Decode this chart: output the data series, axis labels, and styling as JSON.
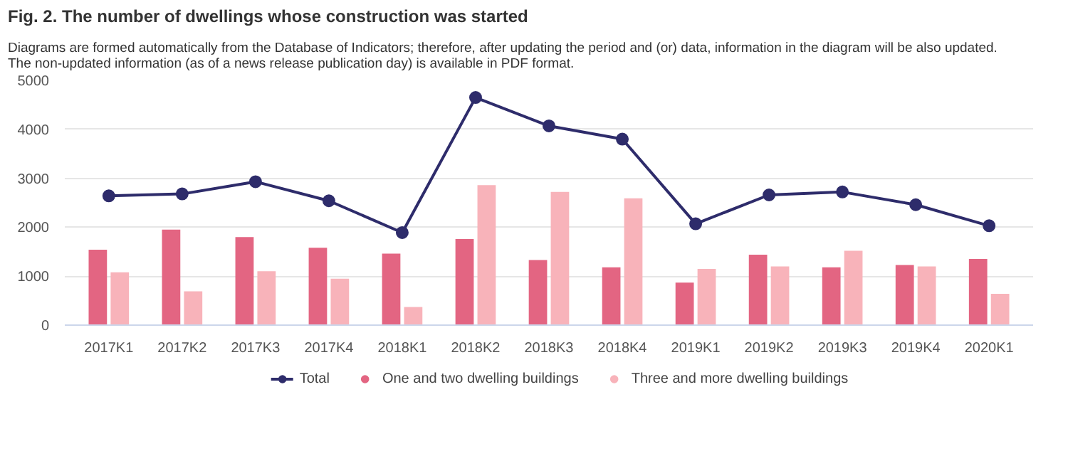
{
  "chart_data": {
    "type": "bar",
    "title": "Fig. 2. The number of dwellings whose construction was started",
    "subtitle": "Diagrams are formed automatically from the Database of Indicators; therefore, after updating the period and (or) data, information in the diagram will be also updated.\nThe non-updated information (as of a news release publication day) is available in PDF format.",
    "categories": [
      "2017K1",
      "2017K2",
      "2017K3",
      "2017K4",
      "2018K1",
      "2018K2",
      "2018K3",
      "2018K4",
      "2019K1",
      "2019K2",
      "2019K3",
      "2019K4",
      "2020K1"
    ],
    "series": [
      {
        "name": "Total",
        "type": "line",
        "color": "#2e2c6b",
        "marker": "circle",
        "values": [
          2640,
          2680,
          2930,
          2540,
          1890,
          4650,
          4070,
          3800,
          2070,
          2660,
          2720,
          2460,
          2030
        ]
      },
      {
        "name": "One and two dwelling buildings",
        "color": "#e36582",
        "values": [
          1540,
          1950,
          1800,
          1580,
          1460,
          1760,
          1330,
          1180,
          870,
          1440,
          1180,
          1230,
          1350
        ]
      },
      {
        "name": "Three and more dwelling buildings",
        "color": "#f8b3ba",
        "values": [
          1080,
          690,
          1100,
          950,
          370,
          2860,
          2720,
          2590,
          1150,
          1200,
          1520,
          1200,
          640
        ]
      }
    ],
    "ylim": [
      0,
      5000
    ],
    "yticks": [
      0,
      1000,
      2000,
      3000,
      4000,
      5000
    ],
    "grid": "y",
    "legend": "bottom"
  }
}
